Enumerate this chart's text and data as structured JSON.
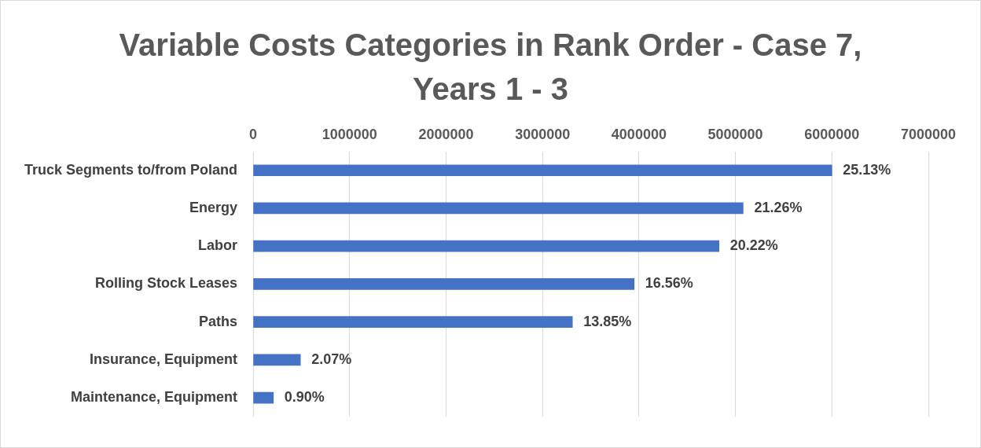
{
  "chart_data": {
    "type": "bar",
    "orientation": "horizontal",
    "title": "Variable Costs Categories in Rank Order - Case 7, Years 1 - 3",
    "categories": [
      "Truck Segments to/from Poland",
      "Energy",
      "Labor",
      "Rolling Stock Leases",
      "Paths",
      "Insurance, Equipment",
      "Maintenance, Equipment"
    ],
    "values": [
      6000000,
      5080000,
      4830000,
      3950000,
      3310000,
      490000,
      210000
    ],
    "annotations": [
      {
        "text": "25.13%",
        "x": 6000000,
        "y": "Truck Segments to/from Poland"
      },
      {
        "text": "21.26%",
        "x": 5080000,
        "y": "Energy"
      },
      {
        "text": "20.22%",
        "x": 4830000,
        "y": "Labor"
      },
      {
        "text": "16.56%",
        "x": 3950000,
        "y": "Rolling Stock Leases"
      },
      {
        "text": "13.85%",
        "x": 3310000,
        "y": "Paths"
      },
      {
        "text": "2.07%",
        "x": 490000,
        "y": "Insurance, Equipment"
      },
      {
        "text": "0.90%",
        "x": 210000,
        "y": "Maintenance, Equipment"
      }
    ],
    "color": "#4472c4",
    "xlim": [
      0,
      7000000
    ],
    "xticks": [
      0,
      1000000,
      2000000,
      3000000,
      4000000,
      5000000,
      6000000,
      7000000
    ],
    "grid": "x",
    "legend": false
  }
}
